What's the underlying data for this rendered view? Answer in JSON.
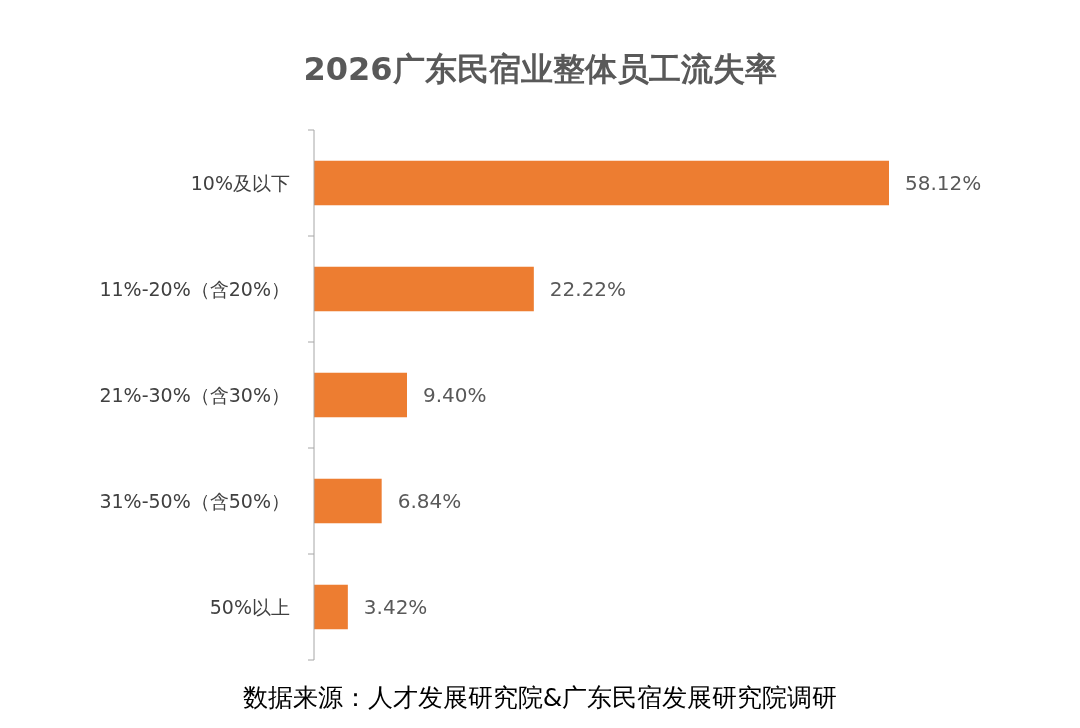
{
  "chart_data": {
    "type": "bar",
    "orientation": "horizontal",
    "title": "2026广东民宿业整体员工流失率",
    "categories": [
      "10%及以下",
      "11%-20%（含20%）",
      "21%-30%（含30%）",
      "31%-50%（含50%）",
      "50%以上"
    ],
    "values": [
      58.12,
      22.22,
      9.4,
      6.84,
      3.42
    ],
    "value_labels": [
      "58.12%",
      "22.22%",
      "9.40%",
      "6.84%",
      "3.42%"
    ],
    "color": "#ed7d31",
    "annotations": [
      "数据来源：人才发展研究院&广东民宿发展研究院调研"
    ]
  }
}
